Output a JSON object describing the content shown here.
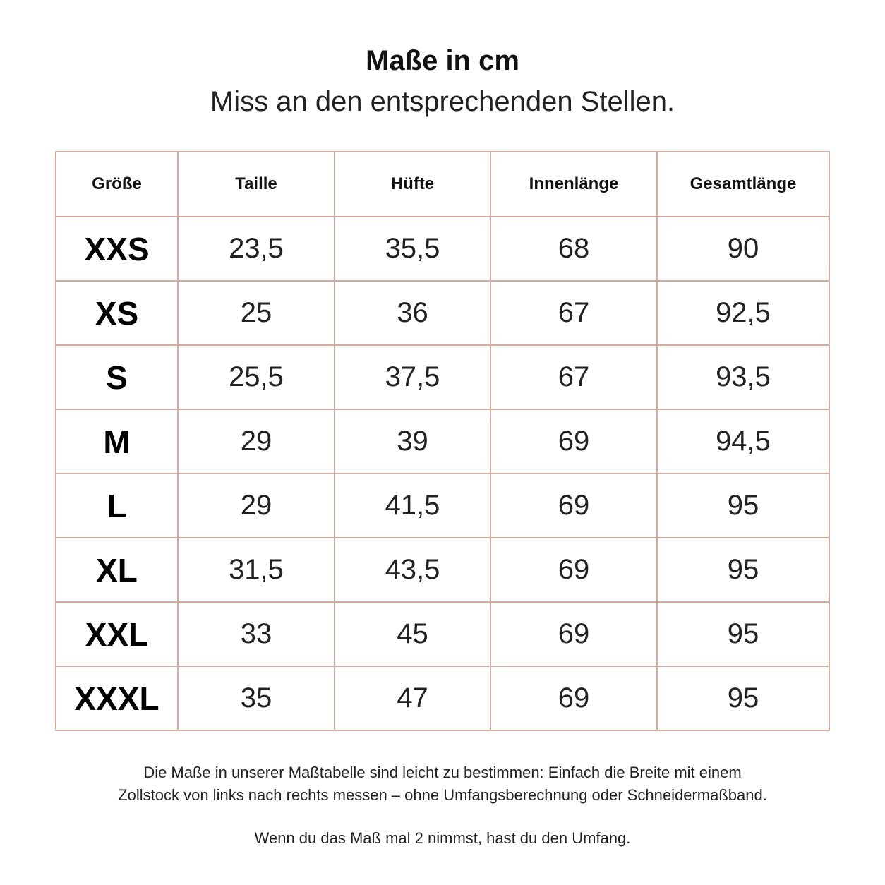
{
  "header": {
    "title": "Maße in cm",
    "subtitle": "Miss an den entsprechenden Stellen."
  },
  "table": {
    "columns": [
      "Größe",
      "Taille",
      "Hüfte",
      "Innenlänge",
      "Gesamtlänge"
    ],
    "rows": [
      [
        "XXS",
        "23,5",
        "35,5",
        "68",
        "90"
      ],
      [
        "XS",
        "25",
        "36",
        "67",
        "92,5"
      ],
      [
        "S",
        "25,5",
        "37,5",
        "67",
        "93,5"
      ],
      [
        "M",
        "29",
        "39",
        "69",
        "94,5"
      ],
      [
        "L",
        "29",
        "41,5",
        "69",
        "95"
      ],
      [
        "XL",
        "31,5",
        "43,5",
        "69",
        "95"
      ],
      [
        "XXL",
        "33",
        "45",
        "69",
        "95"
      ],
      [
        "XXXL",
        "35",
        "47",
        "69",
        "95"
      ]
    ]
  },
  "footer": {
    "lines": [
      "Die Maße in unserer Maßtabelle sind leicht zu bestimmen: Einfach die Breite mit einem",
      "Zollstock von links nach rechts messen – ohne Umfangsberechnung oder Schneidermaßband.",
      "Wenn du das Maß mal 2 nimmst, hast du den Umfang."
    ]
  }
}
